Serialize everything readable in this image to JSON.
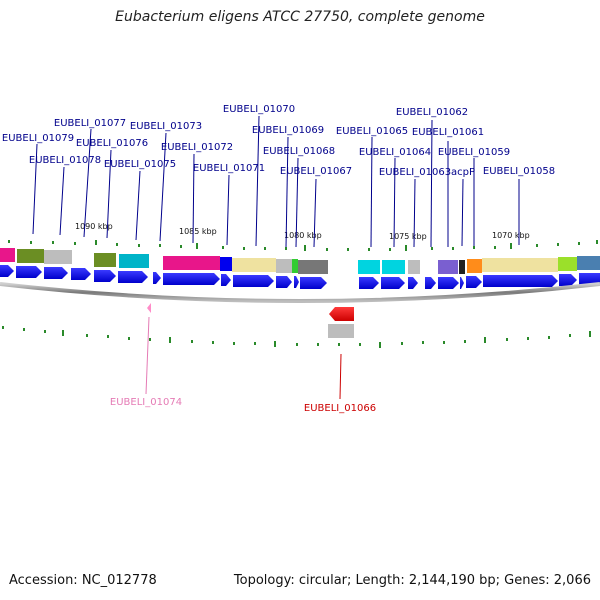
{
  "title": "Eubacterium eligens ATCC 27750, complete genome",
  "footer": {
    "accession": "Accession: NC_012778",
    "summary": "Topology: circular; Length: 2,144,190 bp; Genes: 2,066"
  },
  "colors": {
    "forward": "#0000ee",
    "gene_label_forward": "#00008b",
    "gene_label_reverse_cds": "#cc0000",
    "gene_label_pink": "#e57bb5",
    "backbone": "#8a8a8a",
    "tick": "#2a8a2a"
  },
  "scale_labels": [
    "1090 kbp",
    "1085 kbp",
    "1080 kbp",
    "1075 kbp",
    "1070 kbp"
  ],
  "gene_labels": [
    {
      "text": "EUBELI_01079"
    },
    {
      "text": "EUBELI_01078"
    },
    {
      "text": "EUBELI_01077"
    },
    {
      "text": "EUBELI_01076"
    },
    {
      "text": "EUBELI_01075"
    },
    {
      "text": "EUBELI_01073"
    },
    {
      "text": "EUBELI_01072"
    },
    {
      "text": "EUBELI_01071"
    },
    {
      "text": "EUBELI_01070"
    },
    {
      "text": "EUBELI_01069"
    },
    {
      "text": "EUBELI_01068"
    },
    {
      "text": "EUBELI_01067"
    },
    {
      "text": "EUBELI_01065"
    },
    {
      "text": "EUBELI_01064"
    },
    {
      "text": "EUBELI_01063"
    },
    {
      "text": "acpP"
    },
    {
      "text": "EUBELI_01062"
    },
    {
      "text": "EUBELI_01061"
    },
    {
      "text": "EUBELI_01059"
    },
    {
      "text": "EUBELI_01058"
    },
    {
      "text": "EUBELI_01074"
    },
    {
      "text": "EUBELI_01066"
    }
  ]
}
